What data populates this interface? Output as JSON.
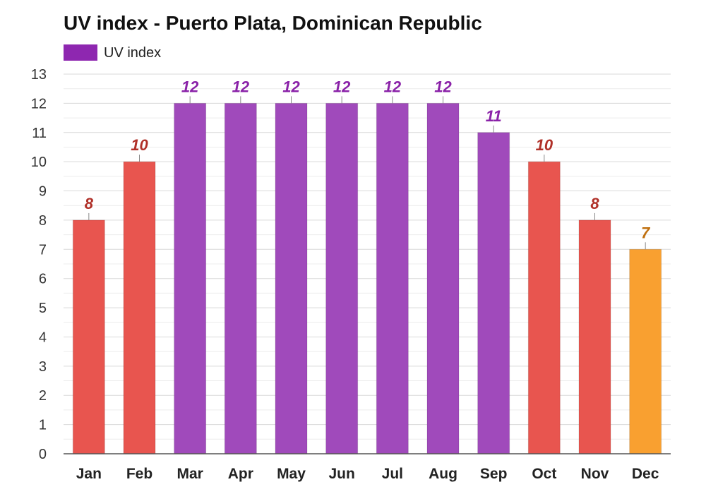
{
  "chart_data": {
    "type": "bar",
    "title": "UV index - Puerto Plata, Dominican Republic",
    "xlabel": "",
    "ylabel": "",
    "categories": [
      "Jan",
      "Feb",
      "Mar",
      "Apr",
      "May",
      "Jun",
      "Jul",
      "Aug",
      "Sep",
      "Oct",
      "Nov",
      "Dec"
    ],
    "series": [
      {
        "name": "UV index",
        "values": [
          8,
          10,
          12,
          12,
          12,
          12,
          12,
          12,
          11,
          10,
          8,
          7
        ],
        "bar_colors": [
          "#e8554f",
          "#e8554f",
          "#a04abb",
          "#a04abb",
          "#a04abb",
          "#a04abb",
          "#a04abb",
          "#a04abb",
          "#a04abb",
          "#e8554f",
          "#e8554f",
          "#f9a030"
        ],
        "label_colors": [
          "#b03028",
          "#b03028",
          "#8a22a8",
          "#8a22a8",
          "#8a22a8",
          "#8a22a8",
          "#8a22a8",
          "#8a22a8",
          "#8a22a8",
          "#b03028",
          "#b03028",
          "#c07010"
        ]
      }
    ],
    "legend": {
      "placement": "top-left",
      "swatch_color": "#8e27b0"
    },
    "yticks": [
      0,
      1,
      2,
      3,
      4,
      5,
      6,
      7,
      8,
      9,
      10,
      11,
      12,
      13
    ],
    "ylim": [
      0,
      13
    ],
    "grid": true
  }
}
